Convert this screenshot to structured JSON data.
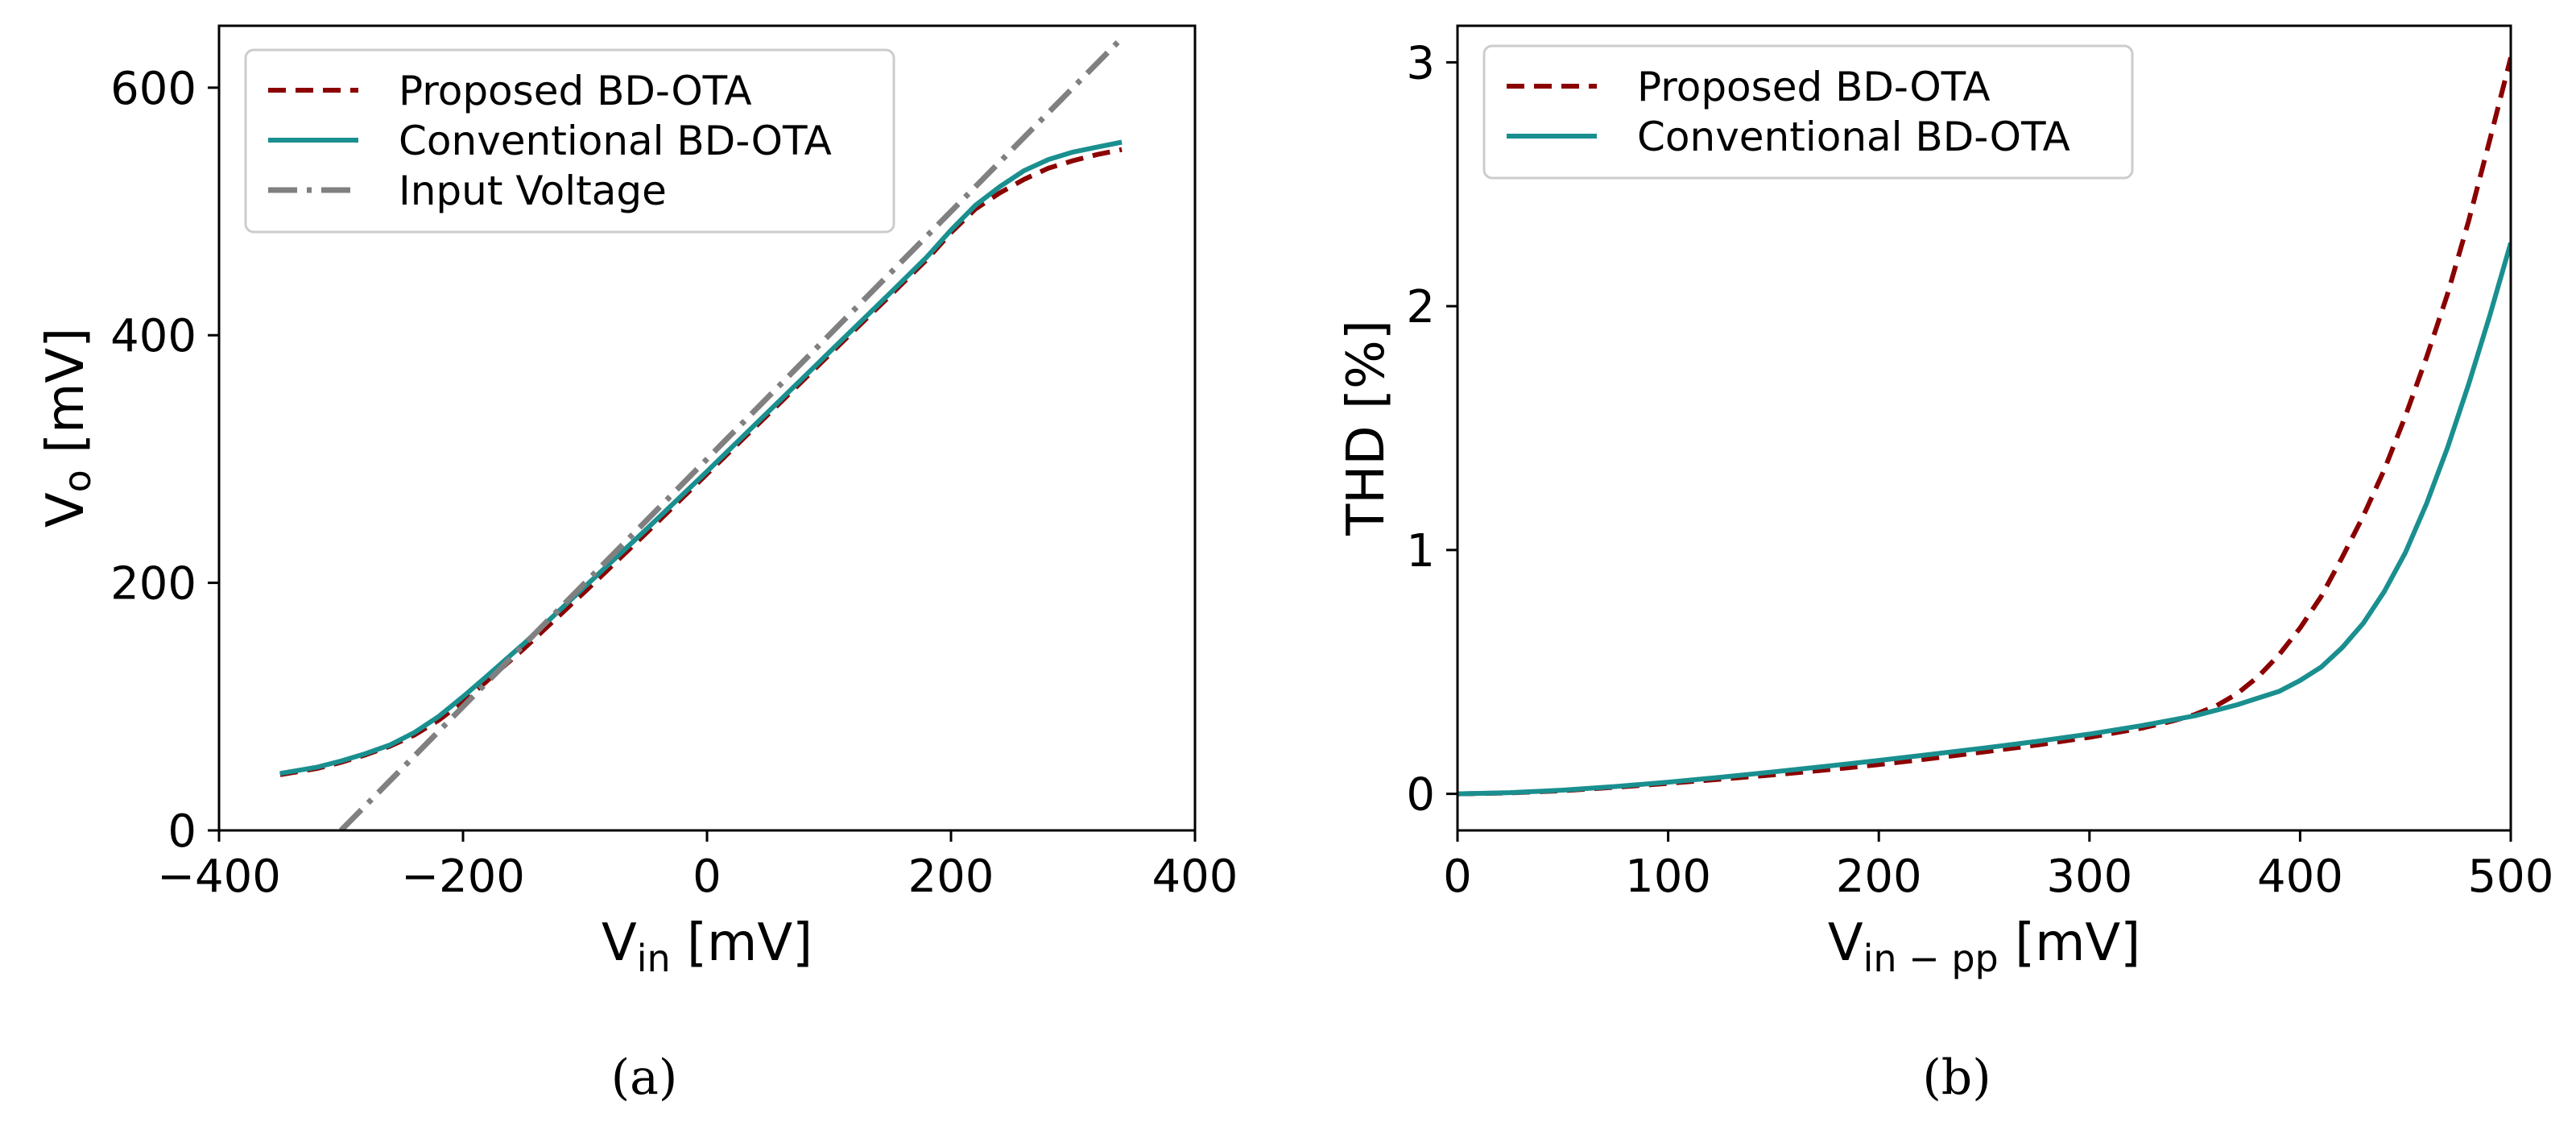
{
  "colors": {
    "proposed": "#8b0000",
    "conventional": "#1a8f8f",
    "input": "#808080",
    "axis": "#000000"
  },
  "chart_data": [
    {
      "id": "a",
      "type": "line",
      "caption": "(a)",
      "xlabel": {
        "main": "V",
        "sub": "in",
        "rest": " [mV]"
      },
      "ylabel": {
        "main": "V",
        "sub": "o",
        "rest": " [mV]"
      },
      "xlim": [
        -400,
        400
      ],
      "ylim": [
        0,
        650
      ],
      "xticks": [
        -400,
        -200,
        0,
        200,
        400
      ],
      "xtick_labels": [
        "−400",
        "−200",
        "0",
        "200",
        "400"
      ],
      "yticks": [
        0,
        200,
        400,
        600
      ],
      "ytick_labels": [
        "0",
        "200",
        "400",
        "600"
      ],
      "legend_position": "upper-left",
      "series": [
        {
          "name": "Proposed BD-OTA",
          "style": "dashed",
          "color_key": "proposed",
          "x": [
            -350,
            -320,
            -300,
            -280,
            -260,
            -240,
            -220,
            -200,
            -180,
            -150,
            -100,
            -50,
            0,
            50,
            100,
            150,
            180,
            200,
            220,
            240,
            260,
            280,
            300,
            320,
            340
          ],
          "y": [
            45,
            50,
            55,
            61,
            68,
            77,
            89,
            104,
            121,
            147,
            193,
            240,
            288,
            336,
            384,
            432,
            461,
            483,
            502,
            515,
            526,
            535,
            541,
            546,
            550
          ]
        },
        {
          "name": "Conventional BD-OTA",
          "style": "solid",
          "color_key": "conventional",
          "x": [
            -350,
            -320,
            -300,
            -280,
            -260,
            -240,
            -220,
            -200,
            -180,
            -150,
            -100,
            -50,
            0,
            50,
            100,
            150,
            180,
            200,
            220,
            240,
            260,
            280,
            300,
            320,
            340
          ],
          "y": [
            46,
            51,
            56,
            62,
            69,
            79,
            92,
            108,
            125,
            151,
            197,
            243,
            290,
            338,
            386,
            434,
            463,
            485,
            505,
            520,
            533,
            542,
            548,
            552,
            556
          ]
        },
        {
          "name": "Input Voltage",
          "style": "dashdot",
          "color_key": "input",
          "x": [
            -300,
            340
          ],
          "y": [
            0,
            640
          ]
        }
      ]
    },
    {
      "id": "b",
      "type": "line",
      "caption": "(b)",
      "xlabel": {
        "main": "V",
        "sub": "in − pp",
        "rest": " [mV]"
      },
      "ylabel": {
        "main": "THD [%]",
        "sub": "",
        "rest": ""
      },
      "xlim": [
        0,
        500
      ],
      "ylim": [
        -0.15,
        3.15
      ],
      "xticks": [
        0,
        100,
        200,
        300,
        400,
        500
      ],
      "xtick_labels": [
        "0",
        "100",
        "200",
        "300",
        "400",
        "500"
      ],
      "yticks": [
        0,
        1,
        2,
        3
      ],
      "ytick_labels": [
        "0",
        "1",
        "2",
        "3"
      ],
      "legend_position": "upper-left",
      "series": [
        {
          "name": "Proposed BD-OTA",
          "style": "dashed",
          "color_key": "proposed",
          "x": [
            0,
            25,
            50,
            75,
            100,
            125,
            150,
            175,
            200,
            225,
            250,
            275,
            300,
            325,
            340,
            350,
            360,
            370,
            380,
            390,
            400,
            410,
            420,
            430,
            440,
            450,
            460,
            470,
            480,
            490,
            500
          ],
          "y": [
            0,
            0.004,
            0.013,
            0.027,
            0.043,
            0.06,
            0.078,
            0.098,
            0.12,
            0.145,
            0.172,
            0.2,
            0.232,
            0.27,
            0.3,
            0.325,
            0.36,
            0.41,
            0.48,
            0.57,
            0.68,
            0.81,
            0.97,
            1.14,
            1.33,
            1.55,
            1.79,
            2.05,
            2.35,
            2.68,
            3.02
          ]
        },
        {
          "name": "Conventional BD-OTA",
          "style": "solid",
          "color_key": "conventional",
          "x": [
            0,
            25,
            50,
            75,
            100,
            125,
            150,
            175,
            200,
            225,
            250,
            275,
            300,
            325,
            350,
            370,
            390,
            400,
            410,
            420,
            430,
            440,
            450,
            460,
            470,
            480,
            490,
            500
          ],
          "y": [
            0,
            0.005,
            0.015,
            0.03,
            0.048,
            0.068,
            0.09,
            0.113,
            0.137,
            0.162,
            0.188,
            0.215,
            0.245,
            0.28,
            0.32,
            0.365,
            0.42,
            0.465,
            0.52,
            0.6,
            0.7,
            0.83,
            0.99,
            1.19,
            1.42,
            1.68,
            1.96,
            2.26
          ]
        }
      ]
    }
  ]
}
